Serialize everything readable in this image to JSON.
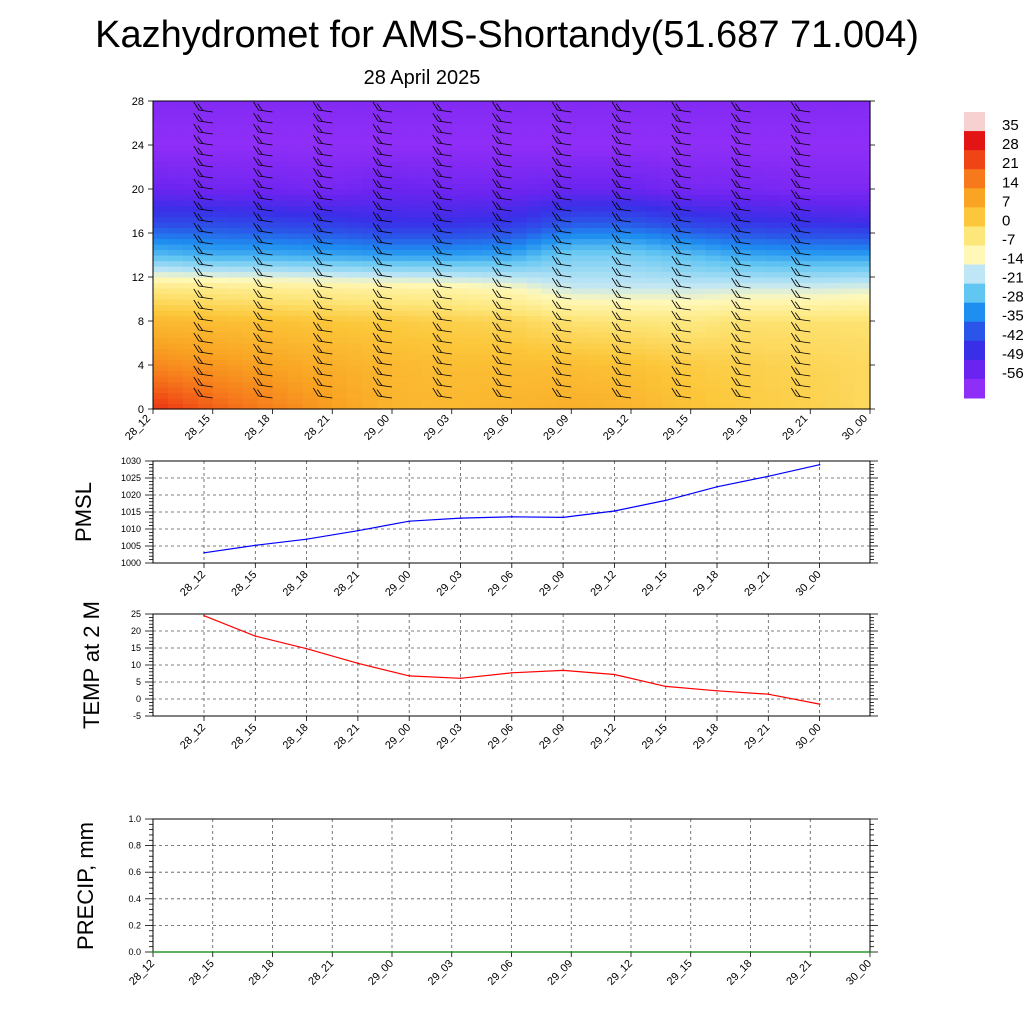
{
  "title": "Kazhydromet for AMS-Shortandy(51.687 71.004)",
  "subtitle": "28 April 2025",
  "colorbar": {
    "labels": [
      "35",
      "28",
      "21",
      "14",
      "7",
      "0",
      "-7",
      "-14",
      "-21",
      "-28",
      "-35",
      "-42",
      "-49",
      "-56"
    ],
    "colors": [
      "#f7d0d0",
      "#e21414",
      "#ee4416",
      "#f6791b",
      "#f9a523",
      "#fcc73a",
      "#fde67a",
      "#fff8b8",
      "#bfe6f5",
      "#62c6f2",
      "#1e8ef0",
      "#2b55e8",
      "#3a2fe8",
      "#6a24f0",
      "#8f2ef7"
    ]
  },
  "chart_data": [
    {
      "type": "heatmap",
      "title": "Kazhydromet for AMS-Shortandy(51.687 71.004)",
      "subtitle": "28 April 2025",
      "xlabel": "",
      "ylabel": "",
      "x_ticks": [
        "28_12",
        "28_15",
        "28_18",
        "28_21",
        "29_00",
        "29_03",
        "29_06",
        "29_09",
        "29_12",
        "29_15",
        "29_18",
        "29_21",
        "30_00"
      ],
      "y_ticks": [
        0,
        4,
        8,
        12,
        16,
        20,
        24,
        28
      ],
      "ylim": [
        0,
        28
      ],
      "temperature_profile": {
        "levels": [
          0,
          4,
          8,
          11,
          14,
          17,
          20,
          24,
          28
        ],
        "values": [
          [
            24,
            14,
            6,
            -5,
            -28,
            -42,
            -52,
            -58,
            -56
          ],
          [
            19,
            12,
            5,
            -6,
            -30,
            -42,
            -53,
            -58,
            -56
          ],
          [
            15,
            10,
            4,
            -7,
            -30,
            -43,
            -53,
            -58,
            -56
          ],
          [
            11,
            8,
            3,
            -8,
            -31,
            -44,
            -54,
            -58,
            -56
          ],
          [
            7,
            6,
            2,
            -9,
            -32,
            -46,
            -52,
            -58,
            -56
          ],
          [
            6,
            5,
            1,
            -10,
            -32,
            -46,
            -53,
            -58,
            -56
          ],
          [
            7,
            5,
            0,
            -12,
            -31,
            -45,
            -53,
            -58,
            -56
          ],
          [
            8,
            5,
            -3,
            -17,
            -25,
            -40,
            -52,
            -58,
            -56
          ],
          [
            7,
            4,
            -4,
            -17,
            -25,
            -40,
            -52,
            -58,
            -56
          ],
          [
            4,
            2,
            -5,
            -17,
            -28,
            -43,
            -54,
            -58,
            -56
          ],
          [
            2,
            1,
            -3,
            -16,
            -31,
            -45,
            -54,
            -58,
            -56
          ],
          [
            1,
            0,
            -3,
            -16,
            -32,
            -46,
            -55,
            -58,
            -56
          ],
          [
            -1,
            -1,
            -3,
            -15,
            -32,
            -47,
            -55,
            -58,
            -56
          ]
        ],
        "wind_heights": [
          1,
          2,
          3,
          4,
          5,
          6,
          7,
          8,
          9,
          10,
          11,
          12,
          13,
          14,
          15,
          16,
          17,
          18,
          19,
          20,
          21,
          22,
          23,
          24,
          25,
          26,
          27
        ]
      },
      "colorbar_labels": [
        "35",
        "28",
        "21",
        "14",
        "7",
        "0",
        "-7",
        "-14",
        "-21",
        "-28",
        "-35",
        "-42",
        "-49",
        "-56"
      ]
    },
    {
      "type": "line",
      "ylabel": "PMSL",
      "categories": [
        "28_12",
        "28_15",
        "28_18",
        "28_21",
        "29_00",
        "29_03",
        "29_06",
        "29_09",
        "29_12",
        "29_15",
        "29_18",
        "29_21",
        "30_00"
      ],
      "series": [
        {
          "values": [
            1003,
            1005.2,
            1007,
            1009.5,
            1012.3,
            1013.2,
            1013.6,
            1013.4,
            1015.3,
            1018.4,
            1022.4,
            1025.5,
            1028.9
          ],
          "color": "#0000ff"
        }
      ],
      "ylim": [
        1000,
        1030
      ],
      "y_ticks": [
        1000,
        1005,
        1010,
        1015,
        1020,
        1025,
        1030
      ],
      "grid": true
    },
    {
      "type": "line",
      "ylabel": "TEMP at 2 M",
      "categories": [
        "28_12",
        "28_15",
        "28_18",
        "28_21",
        "29_00",
        "29_03",
        "29_06",
        "29_09",
        "29_12",
        "29_15",
        "29_18",
        "29_21",
        "30_00"
      ],
      "series": [
        {
          "values": [
            24.5,
            18.5,
            14.8,
            10.5,
            6.8,
            6.1,
            7.7,
            8.4,
            7.2,
            3.7,
            2.4,
            1.4,
            -1.5
          ],
          "color": "#ff0000"
        }
      ],
      "ylim": [
        -5,
        25
      ],
      "y_ticks": [
        -5,
        0,
        5,
        10,
        15,
        20,
        25
      ],
      "grid": true
    },
    {
      "type": "line",
      "ylabel": "PRECIP, mm",
      "categories": [
        "28_12",
        "28_15",
        "28_18",
        "28_21",
        "29_00",
        "29_03",
        "29_06",
        "29_09",
        "29_12",
        "29_15",
        "29_18",
        "29_21",
        "30_00"
      ],
      "series": [
        {
          "values": [
            0,
            0,
            0,
            0,
            0,
            0,
            0,
            0,
            0,
            0,
            0,
            0,
            0
          ],
          "color": "#008000"
        }
      ],
      "ylim": [
        0,
        1
      ],
      "y_ticks": [
        "0.0",
        "0.2",
        "0.4",
        "0.6",
        "0.8",
        "1.0"
      ],
      "grid": true
    }
  ]
}
